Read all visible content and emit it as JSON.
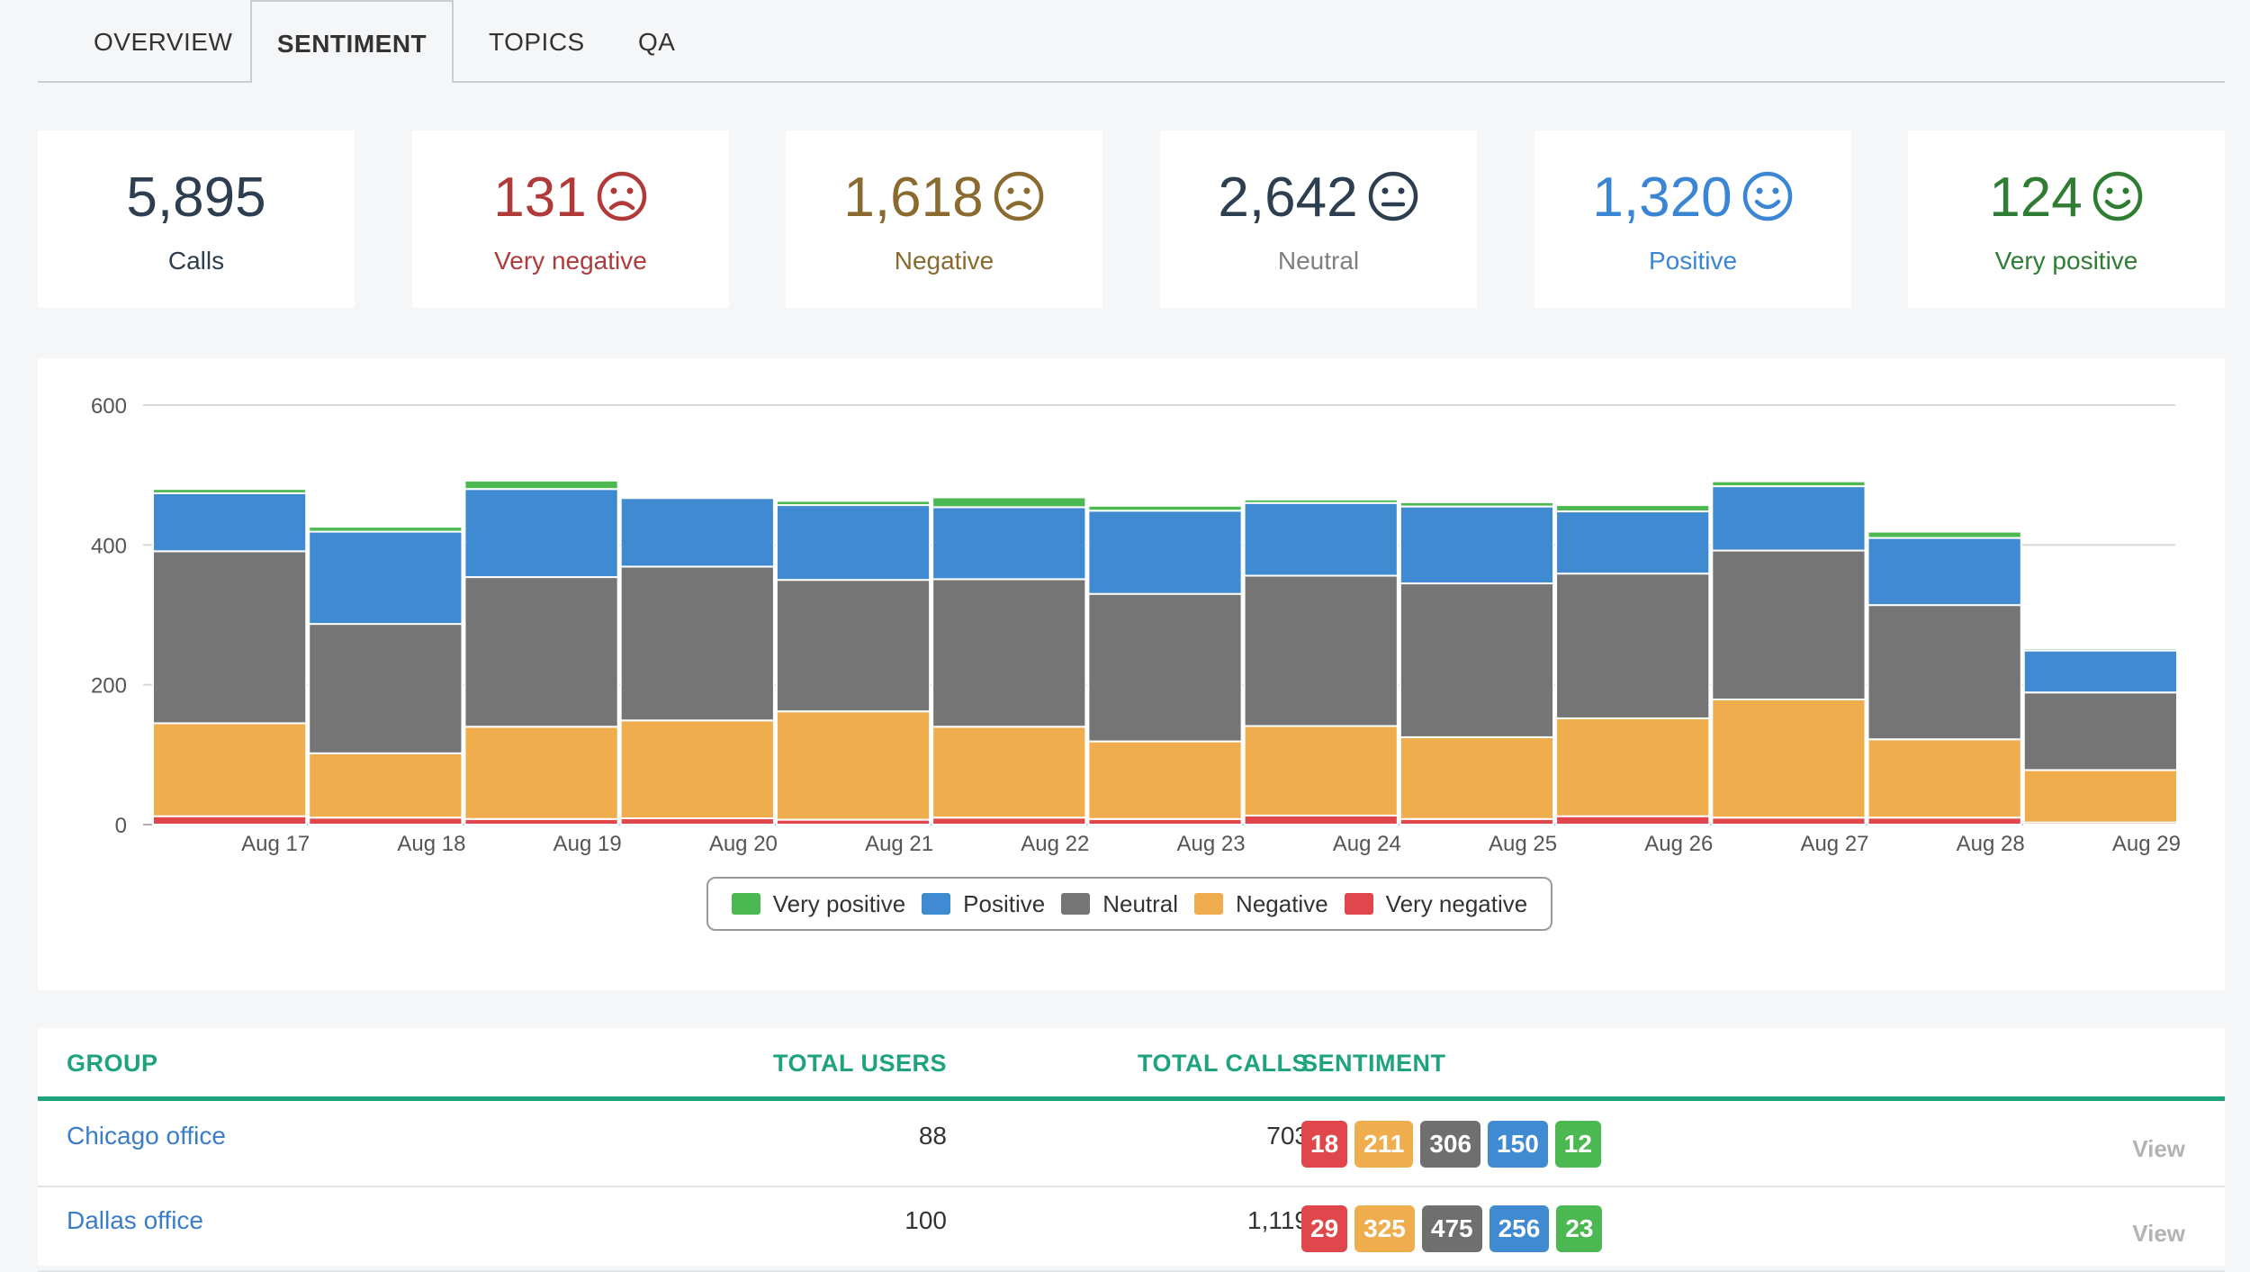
{
  "tabs": [
    {
      "label": "OVERVIEW"
    },
    {
      "label": "SENTIMENT",
      "active": true
    },
    {
      "label": "TOPICS"
    },
    {
      "label": "QA"
    }
  ],
  "stats": [
    {
      "value": "5,895",
      "label": "Calls",
      "color": "#2c3e50",
      "icon": ""
    },
    {
      "value": "131",
      "label": "Very negative",
      "color": "#b03a3a",
      "icon": "frown-icon"
    },
    {
      "value": "1,618",
      "label": "Negative",
      "color": "#8a6a2e",
      "icon": "frown-icon"
    },
    {
      "value": "2,642",
      "label": "Neutral",
      "color": "#2c3e50",
      "label_color": "#7f7f7f",
      "icon": "neutral-face-icon"
    },
    {
      "value": "1,320",
      "label": "Positive",
      "color": "#3a86d4",
      "icon": "smile-icon"
    },
    {
      "value": "124",
      "label": "Very positive",
      "color": "#2e7d32",
      "icon": "smile-icon"
    }
  ],
  "chart_data": {
    "type": "bar",
    "stacked": true,
    "categories": [
      "Aug 17",
      "Aug 18",
      "Aug 19",
      "Aug 20",
      "Aug 21",
      "Aug 22",
      "Aug 23",
      "Aug 24",
      "Aug 25",
      "Aug 26",
      "Aug 27",
      "Aug 28",
      "Aug 29"
    ],
    "ylim": [
      0,
      600
    ],
    "yticks": [
      0,
      200,
      400,
      600
    ],
    "series": [
      {
        "name": "Very negative",
        "color": "#e0474c",
        "values": [
          12,
          10,
          8,
          9,
          7,
          10,
          8,
          13,
          8,
          12,
          10,
          10,
          3
        ]
      },
      {
        "name": "Negative",
        "color": "#f0ad4e",
        "values": [
          133,
          92,
          132,
          140,
          155,
          130,
          111,
          128,
          117,
          140,
          169,
          112,
          75
        ]
      },
      {
        "name": "Neutral",
        "color": "#757575",
        "values": [
          246,
          185,
          214,
          220,
          188,
          211,
          211,
          215,
          220,
          207,
          213,
          192,
          111
        ]
      },
      {
        "name": "Positive",
        "color": "#3f8ad1",
        "values": [
          83,
          132,
          126,
          98,
          107,
          103,
          119,
          104,
          110,
          89,
          92,
          96,
          60
        ]
      },
      {
        "name": "Very positive",
        "color": "#4cb852",
        "values": [
          6,
          7,
          12,
          0,
          6,
          14,
          7,
          5,
          6,
          9,
          7,
          9,
          3
        ]
      }
    ],
    "legend": [
      "Very positive",
      "Positive",
      "Neutral",
      "Negative",
      "Very negative"
    ],
    "legend_position": "bottom-center"
  },
  "table": {
    "headers": {
      "group": "GROUP",
      "users": "TOTAL USERS",
      "calls": "TOTAL CALLS",
      "sentiment": "SENTIMENT"
    },
    "rows": [
      {
        "group": "Chicago office",
        "users": "88",
        "calls": "703",
        "sentiment": [
          "18",
          "211",
          "306",
          "150",
          "12"
        ],
        "view": "View"
      },
      {
        "group": "Dallas office",
        "users": "100",
        "calls": "1,119",
        "sentiment": [
          "29",
          "325",
          "475",
          "256",
          "23"
        ],
        "view": "View"
      }
    ],
    "badge_colors": [
      "#e0474c",
      "#f0ad4e",
      "#6f6f6f",
      "#3f8ad1",
      "#4cb852"
    ]
  }
}
